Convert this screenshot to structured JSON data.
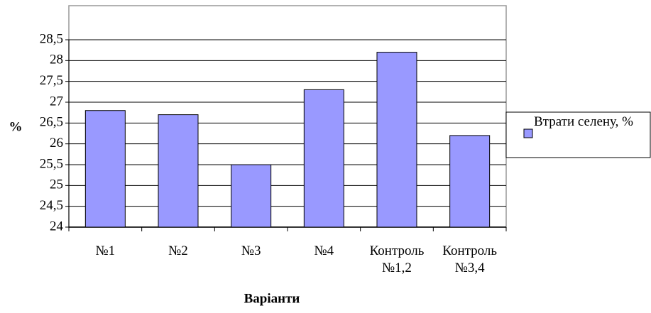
{
  "chart_data": {
    "type": "bar",
    "x_label": "Варіанти",
    "y_label": "%",
    "categories": [
      "№1",
      "№2",
      "№3",
      "№4",
      "Контроль №1,2",
      "Контроль №3,4"
    ],
    "series": [
      {
        "name": "Втрати селену, %",
        "color": "#9999ff",
        "values": [
          26.8,
          26.7,
          25.5,
          27.3,
          28.2,
          26.2
        ]
      }
    ],
    "ylim": [
      24,
      28.5
    ],
    "yticks": [
      24,
      {
        "value": 24.5,
        "label": "24,5"
      },
      25,
      {
        "value": 25.5,
        "label": "25,5"
      },
      26,
      {
        "value": 26.5,
        "label": "26,5"
      },
      27,
      {
        "value": 27.5,
        "label": "27,5"
      },
      28,
      {
        "value": 28.5,
        "label": "28,5"
      }
    ],
    "grid": true,
    "legend": "right"
  }
}
